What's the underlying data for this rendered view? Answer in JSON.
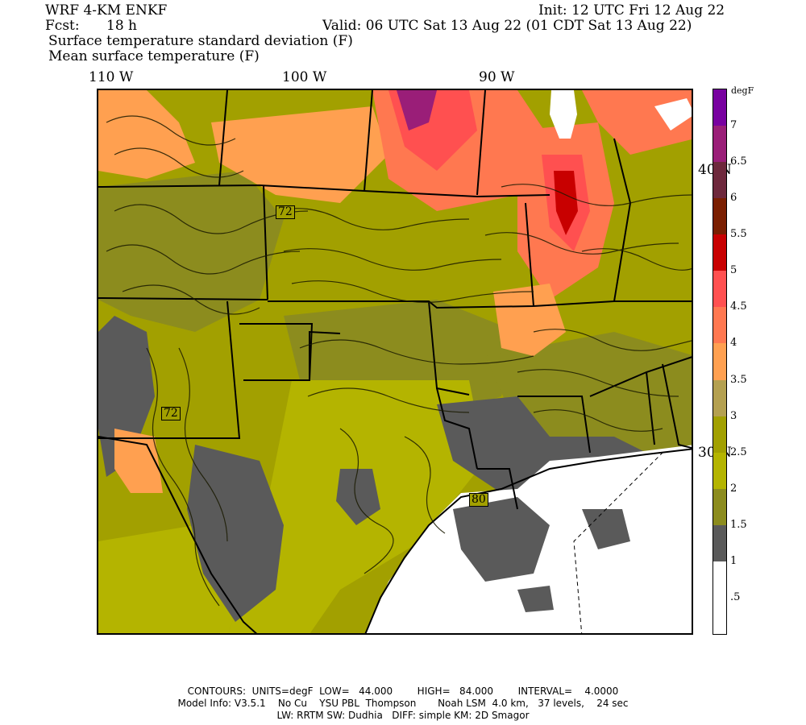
{
  "header": {
    "model": "WRF 4-KM ENKF",
    "fcst_label": "Fcst:",
    "fcst_value": "18 h",
    "init": "Init: 12 UTC Fri 12 Aug 22",
    "valid": "Valid: 06 UTC Sat 13 Aug 22 (01 CDT Sat 13 Aug 22)",
    "field1": "Surface temperature standard deviation (F)",
    "field2": "Mean surface temperature (F)"
  },
  "map": {
    "lon_labels": [
      "110 W",
      "100 W",
      "90 W"
    ],
    "lat_labels": [
      "40 N",
      "30 N"
    ],
    "contour_labels": [
      "72",
      "72",
      "80"
    ],
    "land_color": "#a2a000",
    "water_color": "#ffffff"
  },
  "colorbar": {
    "unit": "degF",
    "ticks": [
      ".5",
      "1",
      "1.5",
      "2",
      "2.5",
      "3",
      "3.5",
      "4",
      "4.5",
      "5",
      "5.5",
      "6",
      "6.5",
      "7"
    ],
    "colors": [
      "#ffffff",
      "#ffffff",
      "#5a5a5a",
      "#8c8c1e",
      "#b4b400",
      "#a2a000",
      "#b4a050",
      "#ffa050",
      "#ff7850",
      "#ff5050",
      "#c80000",
      "#7a1e00",
      "#6e283c",
      "#9a1e78",
      "#7800a0"
    ]
  },
  "footer": {
    "line1": "CONTOURS:  UNITS=degF  LOW=   44.000        HIGH=   84.000        INTERVAL=    4.0000",
    "line2": "Model Info: V3.5.1    No Cu    YSU PBL  Thompson       Noah LSM  4.0 km,   37 levels,    24 sec",
    "line3": "LW: RRTM SW: Dudhia   DIFF: simple KM: 2D Smagor"
  }
}
